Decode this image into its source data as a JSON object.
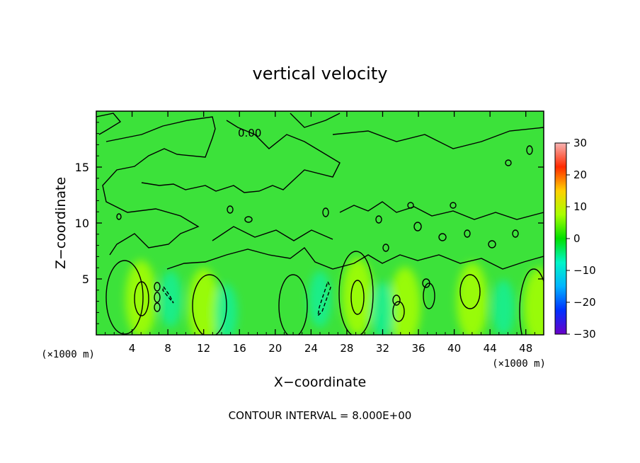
{
  "chart_data": {
    "type": "heatmap",
    "title": "vertical velocity",
    "xlabel": "X−coordinate",
    "ylabel": "Z−coordinate",
    "x_unit_left": "(×1000 m)",
    "x_unit_right": "(×1000 m)",
    "xlim": [
      0,
      50
    ],
    "ylim": [
      0,
      20
    ],
    "x_ticks": [
      4,
      8,
      12,
      16,
      20,
      24,
      28,
      32,
      36,
      40,
      44,
      48
    ],
    "x_tick_labels": [
      "4",
      "8",
      "12",
      "16",
      "20",
      "24",
      "28",
      "32",
      "36",
      "40",
      "44",
      "48"
    ],
    "y_ticks": [
      5,
      10,
      15
    ],
    "y_tick_labels": [
      "5",
      "10",
      "15"
    ],
    "contour_label": "0.00",
    "footer": "CONTOUR INTERVAL = 8.000E+00",
    "colorbar": {
      "min": -30,
      "max": 30,
      "ticks": [
        30,
        20,
        10,
        0,
        -10,
        -20,
        -30
      ],
      "tick_labels": [
        "30",
        "20",
        "10",
        "0",
        "−10",
        "−20",
        "−30"
      ],
      "colors": [
        "#f7b4b4",
        "#ff2a00",
        "#ffd000",
        "#a8ff00",
        "#00e000",
        "#00f5c8",
        "#00b4ff",
        "#0030ff",
        "#6a00c8"
      ]
    },
    "field_background": "#3ce23a",
    "updrafts": [
      {
        "x": 5,
        "z": 3.2,
        "w": 9
      },
      {
        "x": 12,
        "z": 2.5,
        "w": 6
      },
      {
        "x": 29.2,
        "z": 3.4,
        "w": 9
      },
      {
        "x": 34.5,
        "z": 2.6,
        "w": 6
      },
      {
        "x": 42,
        "z": 3.0,
        "w": 6
      },
      {
        "x": 49.5,
        "z": 2.5,
        "w": 5
      }
    ],
    "downdrafts": [
      {
        "x": 8.3,
        "z": 3.2,
        "w": -9
      },
      {
        "x": 25,
        "z": 3.2,
        "w": -10
      },
      {
        "x": 14.5,
        "z": 2.0,
        "w": -4
      },
      {
        "x": 32,
        "z": 2.2,
        "w": -5
      },
      {
        "x": 45.5,
        "z": 2.4,
        "w": -5
      }
    ]
  }
}
